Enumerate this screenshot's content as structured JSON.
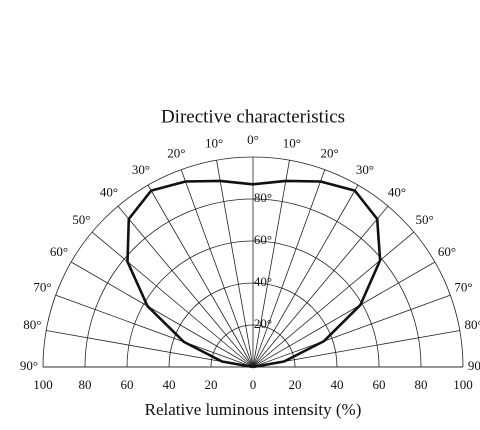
{
  "chart_data": {
    "type": "polar",
    "title": "Directive characteristics",
    "xlabel": "Relative luminous intensity  (%)",
    "x": [
      -90,
      -80,
      -70,
      -60,
      -50,
      -40,
      -30,
      -20,
      -10,
      0,
      10,
      20,
      30,
      40,
      50,
      60,
      70,
      80,
      90
    ],
    "series": [
      {
        "color": "#111111",
        "values": [
          0,
          15,
          35,
          58,
          78,
          92,
          97,
          94,
          90,
          87,
          90,
          94,
          97,
          92,
          79,
          59,
          36,
          15,
          0
        ]
      }
    ],
    "angle_ticks": [
      {
        "value": 0,
        "label": "0°"
      },
      {
        "value": 10,
        "label": "10°"
      },
      {
        "value": 20,
        "label": "20°"
      },
      {
        "value": 30,
        "label": "30°"
      },
      {
        "value": 40,
        "label": "40°"
      },
      {
        "value": 50,
        "label": "50°"
      },
      {
        "value": 60,
        "label": "60°"
      },
      {
        "value": 70,
        "label": "70°"
      },
      {
        "value": 80,
        "label": "80°"
      },
      {
        "value": 90,
        "label": "90°"
      }
    ],
    "rlim": [
      0,
      100
    ],
    "rticks": [
      0,
      20,
      40,
      60,
      80,
      100
    ],
    "ring_labels": [
      {
        "value": 20,
        "label": "20°"
      },
      {
        "value": 40,
        "label": "40°"
      },
      {
        "value": 60,
        "label": "60°"
      },
      {
        "value": 80,
        "label": "80°"
      }
    ],
    "grid": true
  }
}
